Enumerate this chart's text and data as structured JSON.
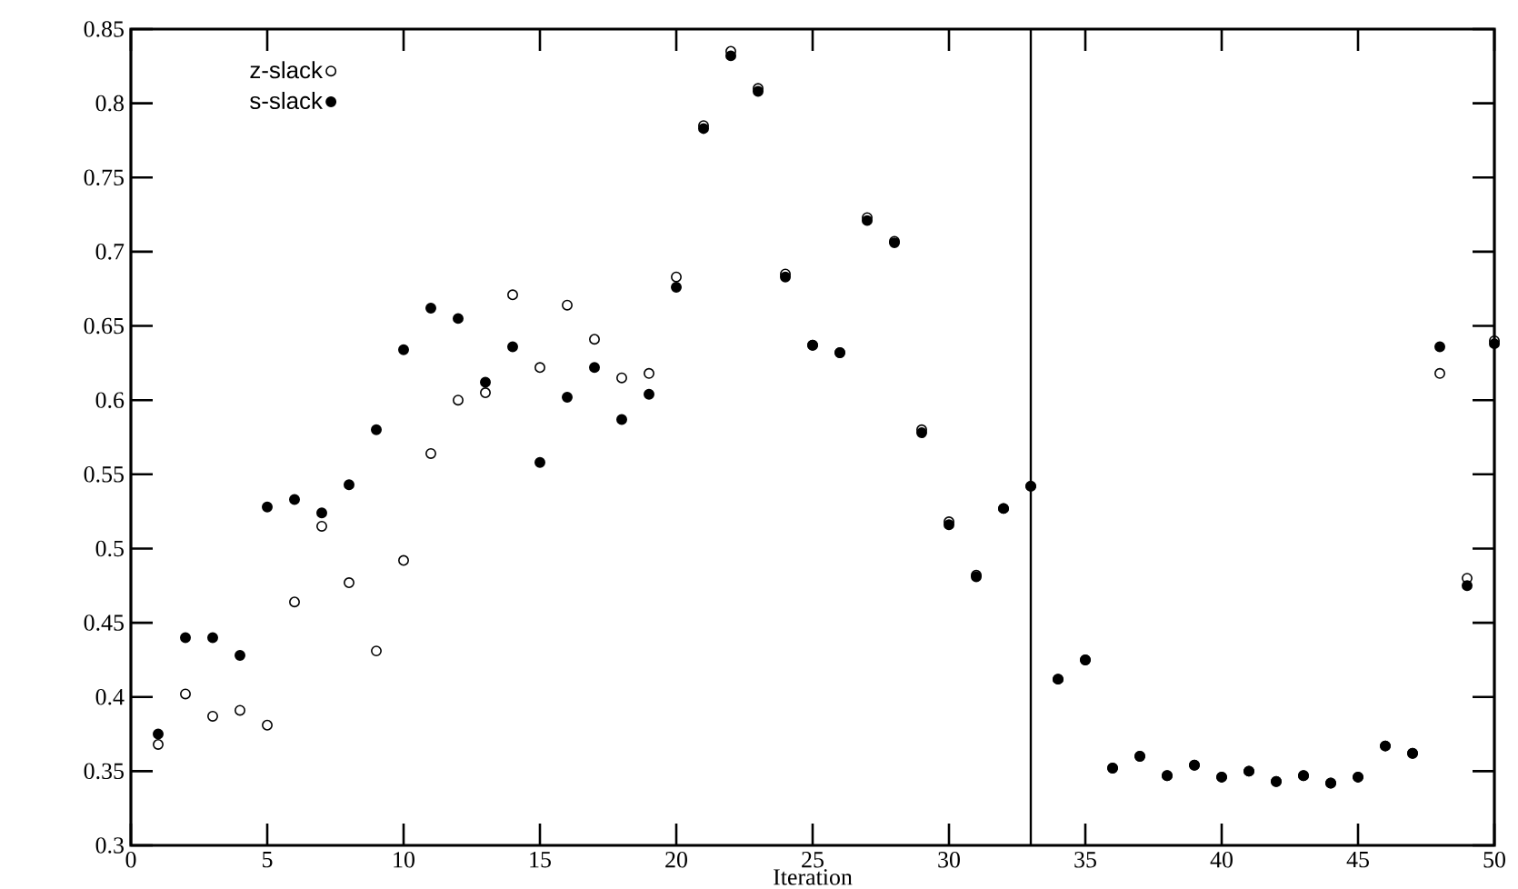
{
  "chart_data": {
    "type": "scatter",
    "xlabel": "Iteration",
    "marker": "circle",
    "legend": "top left",
    "grid": false,
    "x": [
      1,
      2,
      3,
      4,
      5,
      6,
      7,
      8,
      9,
      10,
      11,
      12,
      13,
      14,
      15,
      16,
      17,
      18,
      19,
      20,
      21,
      22,
      23,
      24,
      25,
      26,
      27,
      28,
      29,
      30,
      31,
      32,
      33,
      34,
      35,
      36,
      37,
      38,
      39,
      40,
      41,
      42,
      43,
      44,
      45,
      46,
      47,
      48,
      49,
      50
    ],
    "series": [
      {
        "name": "z-slack",
        "color": "#000000",
        "values": [
          0.368,
          0.402,
          0.387,
          0.391,
          0.381,
          0.464,
          0.515,
          0.477,
          0.431,
          0.492,
          0.564,
          0.6,
          0.605,
          0.671,
          0.622,
          0.664,
          0.641,
          0.615,
          0.618,
          0.683,
          0.785,
          0.835,
          0.81,
          0.685,
          0.637,
          0.632,
          0.723,
          0.707,
          0.58,
          0.518,
          0.482,
          0.527,
          0.542,
          0.412,
          0.425,
          0.352,
          0.36,
          0.347,
          0.354,
          0.346,
          0.35,
          0.343,
          0.347,
          0.342,
          0.346,
          0.367,
          0.362,
          0.618,
          0.48,
          0.64
        ]
      },
      {
        "name": "s-slack",
        "color": "#000000",
        "values": [
          0.375,
          0.44,
          0.44,
          0.428,
          0.528,
          0.533,
          0.524,
          0.543,
          0.58,
          0.634,
          0.662,
          0.655,
          0.612,
          0.636,
          0.558,
          0.602,
          0.622,
          0.587,
          0.604,
          0.676,
          0.783,
          0.832,
          0.808,
          0.683,
          0.637,
          0.632,
          0.721,
          0.706,
          0.578,
          0.516,
          0.481,
          0.527,
          0.542,
          0.412,
          0.425,
          0.352,
          0.36,
          0.347,
          0.354,
          0.346,
          0.35,
          0.343,
          0.347,
          0.342,
          0.346,
          0.367,
          0.362,
          0.636,
          0.475,
          0.638
        ]
      }
    ],
    "xlim": [
      0,
      50
    ],
    "xticks": [
      0,
      5,
      10,
      15,
      20,
      25,
      30,
      35,
      40,
      45,
      50
    ],
    "ylim": [
      0.3,
      0.85
    ],
    "yticks": [
      0.3,
      0.35,
      0.4,
      0.45,
      0.5,
      0.55,
      0.6,
      0.65,
      0.7,
      0.75,
      0.8,
      0.85
    ],
    "ref_lines": [
      {
        "axis": "x",
        "value": 33
      }
    ]
  }
}
